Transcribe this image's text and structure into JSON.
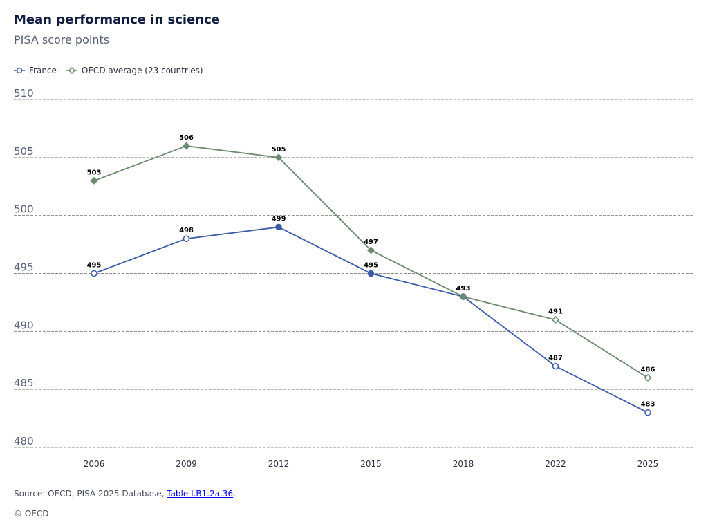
{
  "chart_data": {
    "type": "line",
    "title": "Mean performance in science",
    "subtitle": "PISA score points",
    "categories": [
      "2006",
      "2009",
      "2012",
      "2015",
      "2018",
      "2022",
      "2025"
    ],
    "yticks": [
      510,
      505,
      500,
      495,
      490,
      485,
      480
    ],
    "ylim": [
      480,
      510
    ],
    "grid": true,
    "legend_position": "top-left",
    "series": [
      {
        "name": "France",
        "color": "#3a5ba7",
        "marker": "circle",
        "values": [
          495,
          498,
          499,
          495,
          493,
          487,
          483
        ],
        "filled": [
          false,
          false,
          true,
          true,
          true,
          false,
          false
        ]
      },
      {
        "name": "OECD average (23 countries)",
        "color": "#6b8a6e",
        "marker": "diamond",
        "values": [
          503,
          506,
          505,
          497,
          493,
          491,
          486
        ],
        "filled": [
          true,
          true,
          true,
          true,
          true,
          false,
          false
        ]
      }
    ]
  },
  "footer": {
    "source_prefix": "Source: OECD, PISA 2025 Database, ",
    "source_link": "Table I.B1.2a.36",
    "source_suffix": ".",
    "copyright": "© OECD"
  }
}
